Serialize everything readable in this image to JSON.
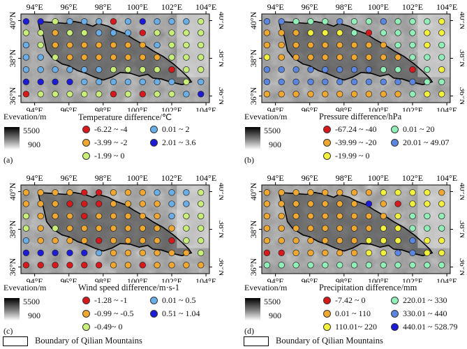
{
  "panels": [
    {
      "id": "a",
      "label": "(a)",
      "elevation_label": "Evevation/m",
      "elevation_max": "5500",
      "elevation_min": "900",
      "legend_title": "Temperature difference/℃",
      "legend": [
        {
          "range": "-6.22 ~ -4",
          "color": "#d7191c"
        },
        {
          "range": "-3.99 ~ -2",
          "color": "#f0a830"
        },
        {
          "range": "-1.99 ~ 0",
          "color": "#c8f078"
        },
        {
          "range": "0.01 ~ 2",
          "color": "#6aaee8"
        },
        {
          "range": "2.01 ~ 3.6",
          "color": "#1c1cd8"
        }
      ],
      "grid_classes": [
        [
          4,
          4,
          2,
          3,
          3,
          3,
          0,
          3,
          4,
          3,
          3,
          3,
          2
        ],
        [
          2,
          2,
          1,
          2,
          2,
          3,
          3,
          3,
          0,
          2,
          2,
          2,
          2
        ],
        [
          3,
          2,
          1,
          1,
          1,
          1,
          1,
          1,
          1,
          3,
          2,
          2,
          2
        ],
        [
          3,
          3,
          2,
          1,
          1,
          1,
          1,
          1,
          1,
          1,
          2,
          2,
          2
        ],
        [
          3,
          3,
          3,
          3,
          3,
          3,
          2,
          2,
          2,
          2,
          0,
          2,
          2
        ],
        [
          4,
          4,
          4,
          4,
          3,
          3,
          3,
          3,
          3,
          3,
          3,
          2,
          3
        ],
        [
          0,
          2,
          2,
          2,
          2,
          2,
          0,
          2,
          0,
          2,
          2,
          3,
          4
        ]
      ]
    },
    {
      "id": "b",
      "label": "(b)",
      "elevation_label": "Evevation/m",
      "elevation_max": "5500",
      "elevation_min": "900",
      "legend_title": "Pressure difference/hPa",
      "legend": [
        {
          "range": "-67.24 ~ -40",
          "color": "#d7191c"
        },
        {
          "range": "-39.99 ~ -20",
          "color": "#f0a830"
        },
        {
          "range": "-19.99 ~ 0",
          "color": "#f2f23c"
        },
        {
          "range": "0.01 ~ 20",
          "color": "#90f0b8"
        },
        {
          "range": "20.01 ~ 49.07",
          "color": "#5b86e0"
        }
      ],
      "grid_classes": [
        [
          4,
          4,
          3,
          3,
          3,
          4,
          3,
          3,
          4,
          3,
          3,
          3,
          2
        ],
        [
          1,
          1,
          1,
          2,
          2,
          2,
          3,
          0,
          3,
          3,
          3,
          2,
          2
        ],
        [
          1,
          1,
          1,
          1,
          1,
          1,
          1,
          1,
          1,
          3,
          3,
          2,
          3
        ],
        [
          2,
          1,
          1,
          1,
          1,
          1,
          1,
          1,
          1,
          1,
          3,
          3,
          3
        ],
        [
          4,
          4,
          4,
          4,
          4,
          4,
          4,
          4,
          3,
          3,
          0,
          3,
          2
        ],
        [
          4,
          4,
          4,
          4,
          4,
          4,
          4,
          4,
          4,
          4,
          4,
          3,
          3
        ],
        [
          1,
          1,
          1,
          1,
          1,
          1,
          1,
          1,
          1,
          1,
          3,
          2,
          2
        ]
      ]
    },
    {
      "id": "c",
      "label": "(c)",
      "elevation_label": "Evevation/m",
      "elevation_max": "5500",
      "elevation_min": "900",
      "legend_title": "Wind speed difference/m·s-1",
      "legend": [
        {
          "range": "-1.28 ~ -1",
          "color": "#d7191c"
        },
        {
          "range": "-0.99 ~ -0.5",
          "color": "#f0a830"
        },
        {
          "range": "-0.49~ 0",
          "color": "#c8f078"
        },
        {
          "range": "0.01 ~ 0.5",
          "color": "#6aaee8"
        },
        {
          "range": "0.51 ~ 1.04",
          "color": "#1c1cd8"
        }
      ],
      "grid_classes": [
        [
          1,
          1,
          1,
          1,
          0,
          0,
          1,
          1,
          1,
          3,
          3,
          3,
          2
        ],
        [
          1,
          1,
          1,
          0,
          0,
          0,
          1,
          1,
          1,
          1,
          3,
          3,
          2
        ],
        [
          2,
          1,
          1,
          1,
          0,
          1,
          1,
          1,
          1,
          1,
          3,
          2,
          2
        ],
        [
          2,
          1,
          2,
          1,
          1,
          1,
          1,
          1,
          1,
          1,
          1,
          2,
          2
        ],
        [
          3,
          1,
          1,
          1,
          1,
          0,
          1,
          1,
          1,
          1,
          0,
          2,
          2
        ],
        [
          4,
          4,
          4,
          4,
          4,
          3,
          1,
          1,
          1,
          1,
          1,
          1,
          2
        ],
        [
          0,
          0,
          0,
          0,
          0,
          0,
          1,
          1,
          0,
          1,
          1,
          1,
          1
        ]
      ]
    },
    {
      "id": "d",
      "label": "(d)",
      "elevation_label": "Evevation/m",
      "elevation_max": "5500",
      "elevation_min": "900",
      "legend_title": "Precipitation difference/mm",
      "legend": [
        {
          "range": "-7.42 ~ 0",
          "color": "#d7191c"
        },
        {
          "range": "0.01 ~ 110",
          "color": "#f0a830"
        },
        {
          "range": "110.01~ 220",
          "color": "#f2f23c"
        },
        {
          "range": "220.01 ~ 330",
          "color": "#90f0b8"
        },
        {
          "range": "330.01 ~ 440",
          "color": "#5b86e0"
        },
        {
          "range": "440.01 ~ 528.79",
          "color": "#1c1cd8"
        }
      ],
      "grid_classes": [
        [
          1,
          1,
          1,
          1,
          1,
          1,
          1,
          1,
          2,
          2,
          2,
          2,
          1
        ],
        [
          1,
          1,
          1,
          1,
          1,
          1,
          1,
          5,
          1,
          0,
          2,
          2,
          2
        ],
        [
          1,
          1,
          1,
          1,
          1,
          1,
          1,
          1,
          1,
          2,
          3,
          3,
          3
        ],
        [
          1,
          1,
          1,
          1,
          1,
          1,
          1,
          1,
          2,
          2,
          3,
          3,
          3
        ],
        [
          1,
          1,
          1,
          1,
          1,
          1,
          1,
          2,
          2,
          2,
          4,
          2,
          2
        ],
        [
          0,
          0,
          1,
          1,
          1,
          1,
          1,
          2,
          2,
          4,
          4,
          2,
          2
        ],
        [
          3,
          3,
          3,
          3,
          3,
          3,
          3,
          3,
          3,
          3,
          3,
          3,
          3
        ]
      ]
    }
  ],
  "axis": {
    "lon_labels": [
      "94°E",
      "96°E",
      "98°E",
      "100°E",
      "102°E",
      "104°E"
    ],
    "lat_labels": [
      "40°N",
      "38°N",
      "36°N"
    ]
  },
  "footer": {
    "boundary_label": "Boundary of Qilian Mountains"
  }
}
